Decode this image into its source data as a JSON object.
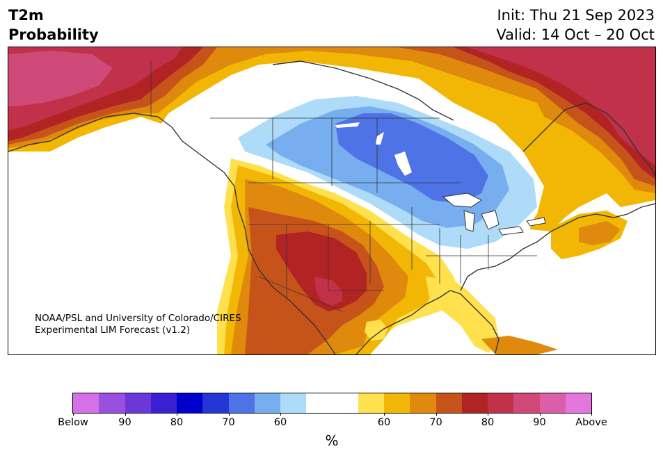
{
  "title": {
    "line1": "T2m",
    "line2": "Probability"
  },
  "header_right": {
    "line1": "Init: Thu 21 Sep 2023",
    "line2": "Valid: 14 Oct – 20 Oct"
  },
  "credit": {
    "line1": "NOAA/PSL and University of Colorado/CIRES",
    "line2": "Experimental LIM Forecast (v1.2)"
  },
  "colorbar": {
    "unit_label": "%",
    "colors": [
      "#d670e8",
      "#9b4fe0",
      "#6b37d8",
      "#3a1fd3",
      "#0000cc",
      "#2436d6",
      "#4e73e6",
      "#76aef0",
      "#aedcf8",
      "#ffffff",
      "#ffffff",
      "#ffe14d",
      "#f2b705",
      "#df8a0d",
      "#c6541a",
      "#b22323",
      "#c2314a",
      "#cf4a78",
      "#da5ea9",
      "#e377de"
    ],
    "ticks": [
      "Below",
      "90",
      "80",
      "70",
      "60",
      "60",
      "70",
      "80",
      "90",
      "Above"
    ]
  },
  "map_colors": {
    "above_pink": "#cf4a78",
    "above_red": "#b22323",
    "above_crimson": "#c2314a",
    "above_darkorange": "#c6541a",
    "above_orange": "#df8a0d",
    "above_gold": "#f2b705",
    "above_yellow": "#ffe14d",
    "below_light": "#aedcf8",
    "below_mid": "#76aef0",
    "below_blue": "#4e73e6",
    "outline": "#333333"
  }
}
